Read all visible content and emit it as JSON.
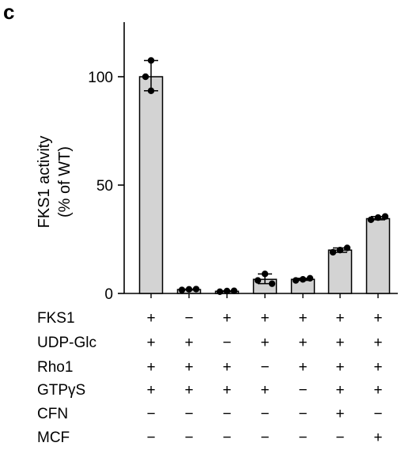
{
  "panel_label": "c",
  "chart_data": {
    "type": "bar",
    "ylabel_lines": [
      "FKS1 activity",
      "(% of WT)"
    ],
    "ylim": [
      0,
      125
    ],
    "yticks": [
      0,
      50,
      100
    ],
    "bar_color": "#d3d3d3",
    "values": [
      100,
      1.8,
      1.0,
      6.5,
      6.5,
      20,
      34.5
    ],
    "errors": [
      [
        93.5,
        107.5
      ],
      [
        1.6,
        2.0
      ],
      [
        0.8,
        1.2
      ],
      [
        4.5,
        9.0
      ],
      [
        6.0,
        7.0
      ],
      [
        19.0,
        21.0
      ],
      [
        34.0,
        35.5
      ]
    ],
    "points": [
      [
        107.5,
        100,
        93.5
      ],
      [
        1.6,
        1.9,
        2.0
      ],
      [
        0.8,
        1.1,
        1.2
      ],
      [
        9.0,
        6.0,
        4.5
      ],
      [
        6.0,
        6.5,
        7.0
      ],
      [
        19.0,
        20.0,
        21.0
      ],
      [
        34.0,
        35.0,
        35.5
      ]
    ],
    "conditions": [
      {
        "label": "FKS1",
        "signs": [
          "+",
          "−",
          "+",
          "+",
          "+",
          "+",
          "+"
        ]
      },
      {
        "label": "UDP-Glc",
        "signs": [
          "+",
          "+",
          "−",
          "+",
          "+",
          "+",
          "+"
        ]
      },
      {
        "label": "Rho1",
        "signs": [
          "+",
          "+",
          "+",
          "−",
          "+",
          "+",
          "+"
        ]
      },
      {
        "label": "GTPγS",
        "signs": [
          "+",
          "+",
          "+",
          "+",
          "−",
          "+",
          "+"
        ]
      },
      {
        "label": "CFN",
        "signs": [
          "−",
          "−",
          "−",
          "−",
          "−",
          "+",
          "−"
        ]
      },
      {
        "label": "MCF",
        "signs": [
          "−",
          "−",
          "−",
          "−",
          "−",
          "−",
          "+"
        ]
      }
    ]
  }
}
